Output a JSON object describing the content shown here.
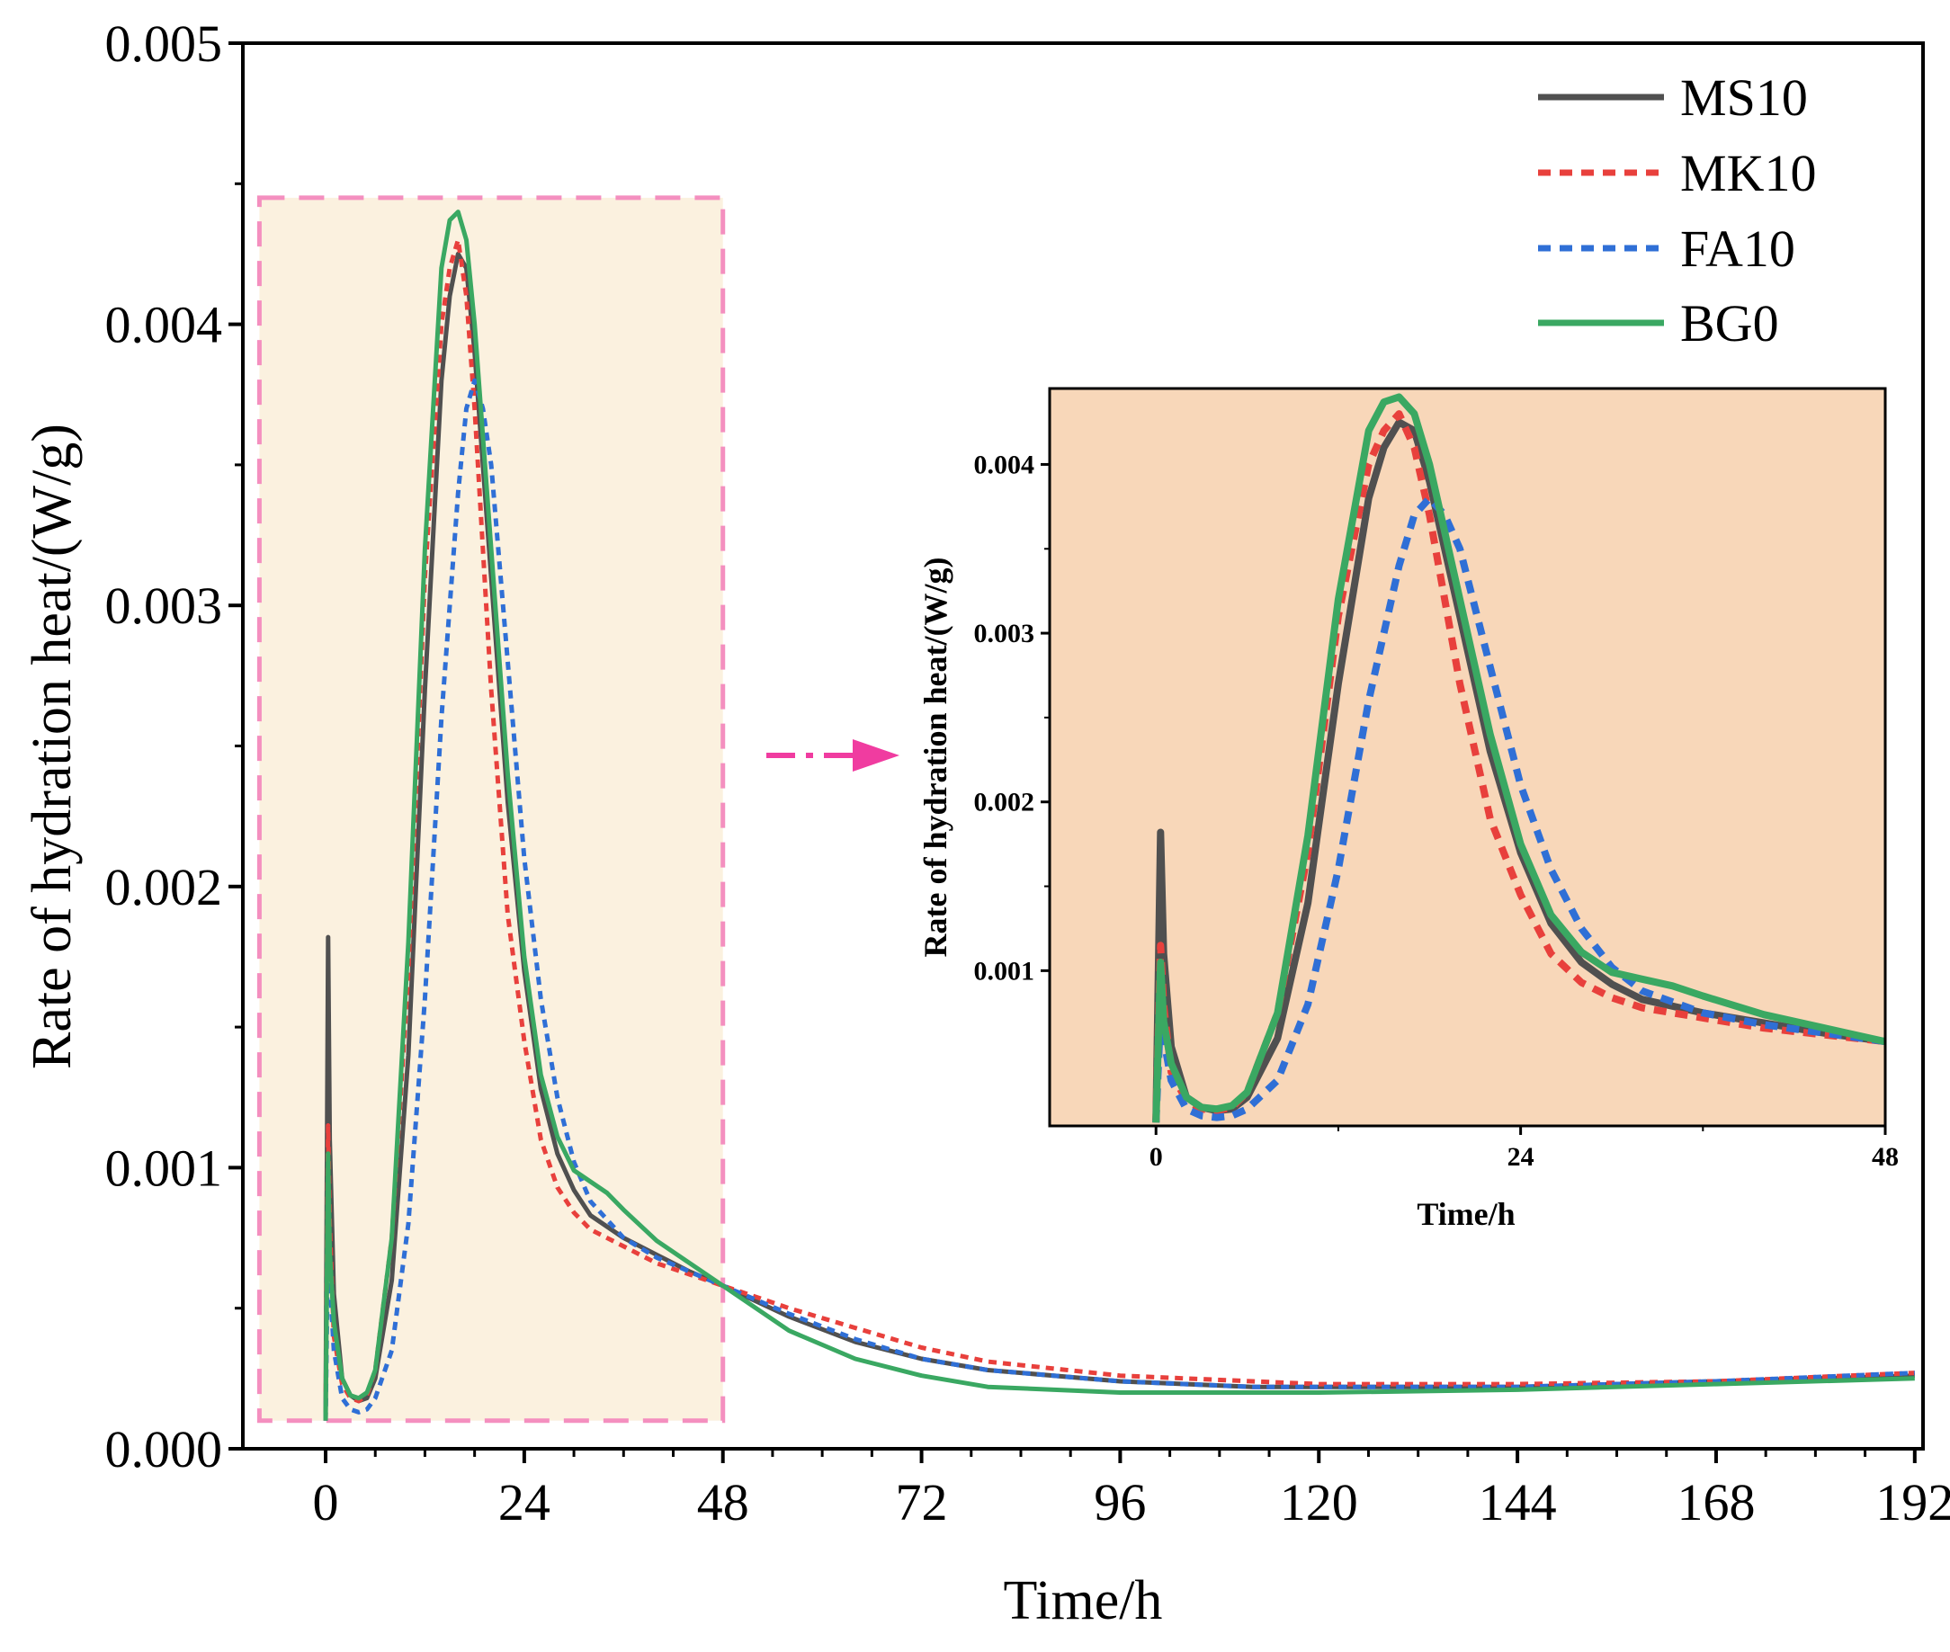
{
  "chart_data": [
    {
      "id": "main",
      "type": "line",
      "xlabel": "Time/h",
      "ylabel": "Rate of hydration heat/(W/g)",
      "xlim": [
        -10,
        193
      ],
      "ylim": [
        0.0,
        0.005
      ],
      "x_ticks": [
        0,
        24,
        48,
        72,
        96,
        120,
        144,
        168,
        192
      ],
      "x_tick_labels": [
        "0",
        "24",
        "48",
        "72",
        "96",
        "120",
        "144",
        "168",
        "192"
      ],
      "y_ticks": [
        0.0,
        0.001,
        0.002,
        0.003,
        0.004,
        0.005
      ],
      "y_tick_labels": [
        "0.000",
        "0.001",
        "0.002",
        "0.003",
        "0.004",
        "0.005"
      ],
      "legend_position": "top-right",
      "highlight_region": {
        "x_range": [
          -8,
          48
        ],
        "y_range": [
          0.0001,
          0.00445
        ],
        "fill": "#fbf1df",
        "border": "#f48fbf"
      },
      "series": [
        {
          "name": "MS10",
          "color": "#505050",
          "style": "solid",
          "x": [
            0,
            0.3,
            0.5,
            1,
            2,
            3,
            4,
            5,
            6,
            8,
            10,
            12,
            14,
            15,
            16,
            17,
            18,
            20,
            22,
            24,
            26,
            28,
            30,
            32,
            36,
            40,
            44,
            48,
            56,
            64,
            72,
            80,
            96,
            112,
            120,
            144,
            168,
            192
          ],
          "y": [
            0.0001,
            0.00182,
            0.0011,
            0.00055,
            0.00025,
            0.00019,
            0.00017,
            0.00018,
            0.00025,
            0.0006,
            0.0014,
            0.0027,
            0.0038,
            0.0041,
            0.00425,
            0.0042,
            0.0039,
            0.0031,
            0.0023,
            0.0017,
            0.00128,
            0.00105,
            0.00092,
            0.00083,
            0.00075,
            0.00069,
            0.00063,
            0.00058,
            0.00047,
            0.00038,
            0.00032,
            0.00028,
            0.00024,
            0.00022,
            0.00022,
            0.00022,
            0.00024,
            0.00026
          ]
        },
        {
          "name": "MK10",
          "color": "#e8403c",
          "style": "dotted",
          "x": [
            0,
            0.3,
            0.5,
            1,
            2,
            3,
            4,
            5,
            6,
            8,
            10,
            12,
            14,
            15,
            16,
            17,
            18,
            20,
            22,
            24,
            26,
            28,
            30,
            32,
            36,
            40,
            44,
            48,
            56,
            64,
            72,
            80,
            96,
            112,
            120,
            144,
            168,
            192
          ],
          "y": [
            0.0001,
            0.00115,
            0.0008,
            0.0004,
            0.00023,
            0.00018,
            0.00017,
            0.00019,
            0.00028,
            0.00075,
            0.0017,
            0.0031,
            0.004,
            0.0042,
            0.0043,
            0.0041,
            0.0037,
            0.0027,
            0.0019,
            0.00145,
            0.0011,
            0.00093,
            0.00084,
            0.00078,
            0.00072,
            0.00066,
            0.00062,
            0.00058,
            0.0005,
            0.00043,
            0.00036,
            0.00031,
            0.00026,
            0.00024,
            0.00023,
            0.00023,
            0.00024,
            0.00027
          ]
        },
        {
          "name": "FA10",
          "color": "#2f6fd6",
          "style": "dotted",
          "x": [
            0,
            0.3,
            0.5,
            1,
            2,
            3,
            4,
            5,
            6,
            8,
            10,
            12,
            14,
            16,
            17,
            18,
            19,
            20,
            22,
            24,
            26,
            28,
            30,
            32,
            36,
            40,
            44,
            48,
            56,
            64,
            72,
            80,
            96,
            112,
            120,
            144,
            168,
            192
          ],
          "y": [
            0.0001,
            0.00075,
            0.0006,
            0.00035,
            0.00018,
            0.00014,
            0.00013,
            0.00014,
            0.00018,
            0.00035,
            0.0008,
            0.0016,
            0.0026,
            0.0034,
            0.0037,
            0.0038,
            0.0037,
            0.0035,
            0.0028,
            0.0021,
            0.0016,
            0.00125,
            0.00102,
            0.00088,
            0.00075,
            0.00068,
            0.00063,
            0.00058,
            0.00048,
            0.00039,
            0.00032,
            0.00028,
            0.00024,
            0.00022,
            0.00022,
            0.00022,
            0.00024,
            0.00027
          ]
        },
        {
          "name": "BG0",
          "color": "#3aa862",
          "style": "solid",
          "x": [
            0,
            0.3,
            0.5,
            1,
            2,
            3,
            4,
            5,
            6,
            8,
            10,
            12,
            14,
            15,
            16,
            17,
            18,
            20,
            22,
            24,
            26,
            28,
            30,
            32,
            34,
            36,
            40,
            44,
            48,
            56,
            64,
            72,
            80,
            96,
            112,
            120,
            144,
            168,
            192
          ],
          "y": [
            0.0001,
            0.00105,
            0.0007,
            0.00045,
            0.00025,
            0.00019,
            0.00018,
            0.0002,
            0.00028,
            0.00075,
            0.0018,
            0.0032,
            0.0042,
            0.00437,
            0.0044,
            0.0043,
            0.004,
            0.0032,
            0.0024,
            0.00175,
            0.00133,
            0.00111,
            0.00099,
            0.00095,
            0.00091,
            0.00085,
            0.00074,
            0.00066,
            0.00058,
            0.00042,
            0.00032,
            0.00026,
            0.00022,
            0.0002,
            0.0002,
            0.0002,
            0.00021,
            0.00023,
            0.00025
          ]
        }
      ]
    },
    {
      "id": "inset",
      "type": "line",
      "xlabel": "Time/h",
      "ylabel": "Rate of hydration heat/(W/g)",
      "xlim": [
        -7,
        48
      ],
      "ylim": [
        8e-05,
        0.00445
      ],
      "x_ticks": [
        0,
        24,
        48
      ],
      "x_tick_labels": [
        "0",
        "24",
        "48"
      ],
      "y_ticks": [
        0.001,
        0.002,
        0.003,
        0.004
      ],
      "y_tick_labels": [
        "0.001",
        "0.002",
        "0.003",
        "0.004"
      ],
      "background": "#f8d7b9"
    }
  ],
  "annotation": {
    "type": "arrow",
    "style": "dash-dot",
    "color": "#f03ca0",
    "meaning": "zoomed-in view"
  }
}
